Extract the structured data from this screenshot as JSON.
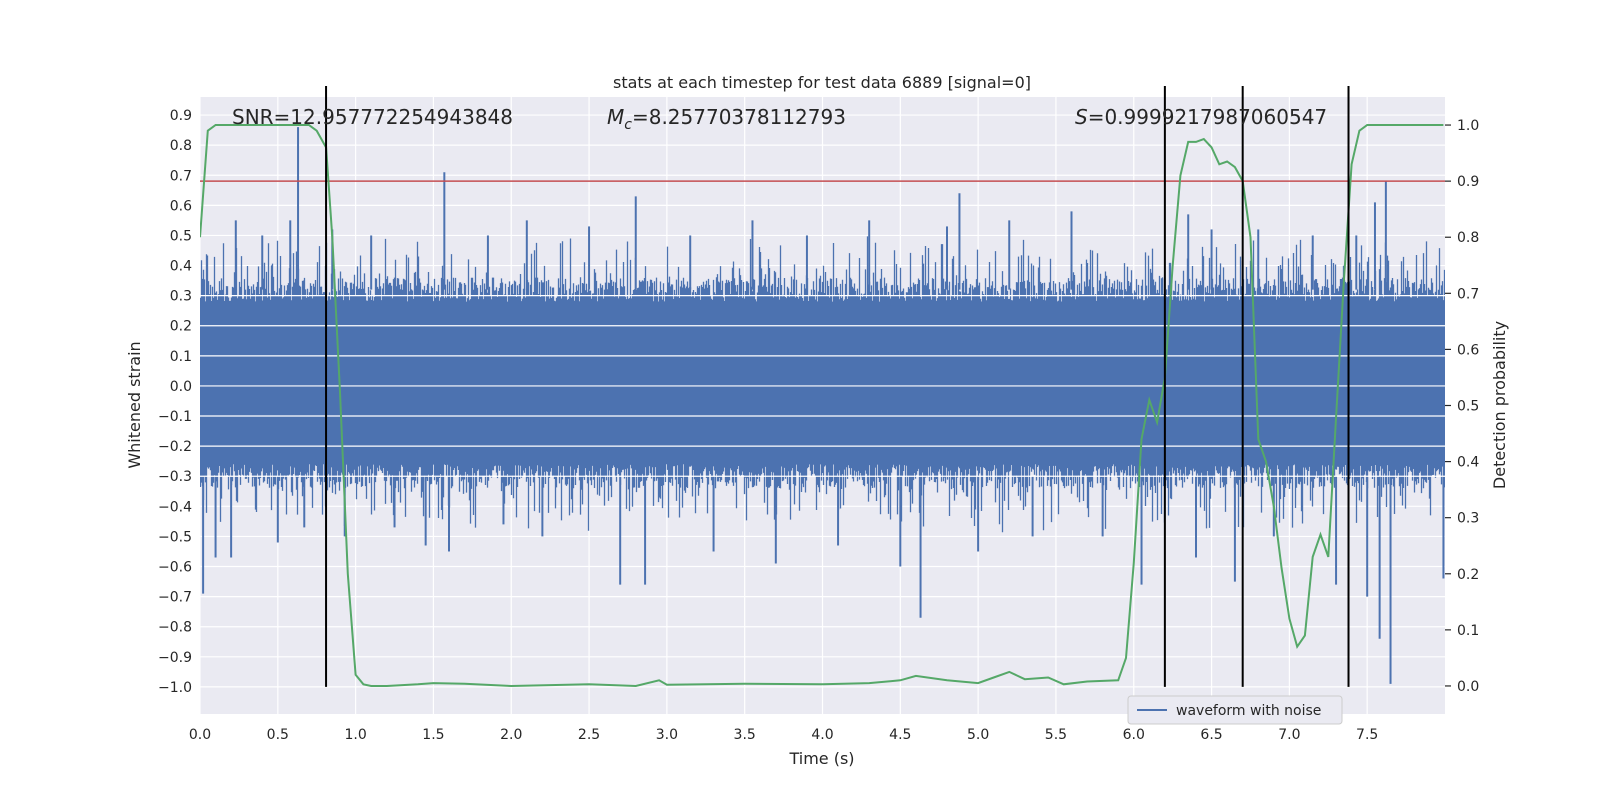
{
  "chart_data": {
    "type": "line",
    "title": "stats at each timestep for test data 6889 [signal=0]",
    "xlabel": "Time (s)",
    "ylabel_left": "Whitened strain",
    "ylabel_right": "Detection probability",
    "xlim": [
      0.0,
      8.0
    ],
    "ylim_left": [
      -1.09,
      0.96
    ],
    "ylim_right": [
      -0.05,
      1.05
    ],
    "x_ticks": [
      0.0,
      0.5,
      1.0,
      1.5,
      2.0,
      2.5,
      3.0,
      3.5,
      4.0,
      4.5,
      5.0,
      5.5,
      6.0,
      6.5,
      7.0,
      7.5
    ],
    "x_tick_labels": [
      "0.0",
      "0.5",
      "1.0",
      "1.5",
      "2.0",
      "2.5",
      "3.0",
      "3.5",
      "4.0",
      "4.5",
      "5.0",
      "5.5",
      "6.0",
      "6.5",
      "7.0",
      "7.5"
    ],
    "y_left_ticks": [
      0.9,
      0.8,
      0.7,
      0.6,
      0.5,
      0.4,
      0.3,
      0.2,
      0.1,
      0.0,
      -0.1,
      -0.2,
      -0.3,
      -0.4,
      -0.5,
      -0.6,
      -0.7,
      -0.8,
      -0.9,
      -1.0
    ],
    "y_left_tick_labels": [
      "0.9",
      "0.8",
      "0.7",
      "0.6",
      "0.5",
      "0.4",
      "0.3",
      "0.2",
      "0.1",
      "0.0",
      "−0.1",
      "−0.2",
      "−0.3",
      "−0.4",
      "−0.5",
      "−0.6",
      "−0.7",
      "−0.8",
      "−0.9",
      "−1.0"
    ],
    "y_right_ticks": [
      1.0,
      0.9,
      0.8,
      0.7,
      0.6,
      0.5,
      0.4,
      0.3,
      0.2,
      0.1,
      0.0
    ],
    "y_right_tick_labels": [
      "1.0",
      "0.9",
      "0.8",
      "0.7",
      "0.6",
      "0.5",
      "0.4",
      "0.3",
      "0.2",
      "0.1",
      "0.0"
    ],
    "annotations": {
      "snr": "SNR=12.957772254943848",
      "mc_symbol": "M",
      "mc_sub": "c",
      "mc_value": "=8.25770378112793",
      "s_symbol": "S",
      "s_value": "=0.9999217987060547"
    },
    "legend": {
      "label": "waveform with noise",
      "location": "lower-right"
    },
    "threshold": {
      "axis": "right",
      "value": 0.9
    },
    "vertical_markers": [
      0.81,
      6.2,
      6.7,
      7.38
    ],
    "vertical_marker_range": [
      -1.0,
      1.0
    ],
    "waveform": {
      "name": "waveform with noise",
      "axis": "left",
      "typical_envelope": [
        -0.3,
        0.32
      ],
      "spikes": [
        {
          "x": 0.02,
          "y": -0.69
        },
        {
          "x": 0.1,
          "y": -0.57
        },
        {
          "x": 0.2,
          "y": -0.57
        },
        {
          "x": 0.23,
          "y": 0.55
        },
        {
          "x": 0.4,
          "y": 0.5
        },
        {
          "x": 0.5,
          "y": -0.52
        },
        {
          "x": 0.58,
          "y": 0.55
        },
        {
          "x": 0.63,
          "y": 0.86
        },
        {
          "x": 0.67,
          "y": -0.47
        },
        {
          "x": 0.85,
          "y": 0.52
        },
        {
          "x": 0.93,
          "y": -0.5
        },
        {
          "x": 1.1,
          "y": 0.5
        },
        {
          "x": 1.25,
          "y": -0.47
        },
        {
          "x": 1.45,
          "y": -0.53
        },
        {
          "x": 1.57,
          "y": 0.71
        },
        {
          "x": 1.6,
          "y": -0.55
        },
        {
          "x": 1.85,
          "y": 0.5
        },
        {
          "x": 1.95,
          "y": -0.46
        },
        {
          "x": 2.1,
          "y": 0.55
        },
        {
          "x": 2.2,
          "y": -0.5
        },
        {
          "x": 2.5,
          "y": 0.53
        },
        {
          "x": 2.7,
          "y": -0.66
        },
        {
          "x": 2.8,
          "y": 0.63
        },
        {
          "x": 2.86,
          "y": -0.66
        },
        {
          "x": 3.15,
          "y": 0.5
        },
        {
          "x": 3.3,
          "y": -0.55
        },
        {
          "x": 3.55,
          "y": 0.55
        },
        {
          "x": 3.7,
          "y": -0.59
        },
        {
          "x": 3.9,
          "y": 0.5
        },
        {
          "x": 4.1,
          "y": -0.53
        },
        {
          "x": 4.3,
          "y": 0.55
        },
        {
          "x": 4.5,
          "y": -0.6
        },
        {
          "x": 4.63,
          "y": -0.77
        },
        {
          "x": 4.8,
          "y": 0.53
        },
        {
          "x": 4.88,
          "y": 0.64
        },
        {
          "x": 5.0,
          "y": -0.55
        },
        {
          "x": 5.2,
          "y": 0.55
        },
        {
          "x": 5.35,
          "y": -0.5
        },
        {
          "x": 5.6,
          "y": 0.58
        },
        {
          "x": 5.8,
          "y": -0.5
        },
        {
          "x": 6.05,
          "y": -0.66
        },
        {
          "x": 6.35,
          "y": 0.57
        },
        {
          "x": 6.4,
          "y": -0.57
        },
        {
          "x": 6.5,
          "y": 0.52
        },
        {
          "x": 6.65,
          "y": -0.65
        },
        {
          "x": 6.8,
          "y": 0.52
        },
        {
          "x": 6.9,
          "y": -0.5
        },
        {
          "x": 7.15,
          "y": 0.5
        },
        {
          "x": 7.3,
          "y": -0.66
        },
        {
          "x": 7.43,
          "y": 0.5
        },
        {
          "x": 7.5,
          "y": -0.7
        },
        {
          "x": 7.55,
          "y": 0.61
        },
        {
          "x": 7.58,
          "y": -0.84
        },
        {
          "x": 7.62,
          "y": 0.68
        },
        {
          "x": 7.65,
          "y": -0.99
        },
        {
          "x": 7.99,
          "y": -0.64
        }
      ]
    },
    "probability": {
      "name": "Detection probability",
      "axis": "right",
      "x": [
        0.0,
        0.05,
        0.1,
        0.3,
        0.5,
        0.6,
        0.7,
        0.75,
        0.81,
        0.85,
        0.9,
        0.95,
        1.0,
        1.05,
        1.1,
        1.2,
        1.4,
        1.5,
        1.7,
        2.0,
        2.5,
        2.8,
        2.95,
        3.0,
        3.5,
        4.0,
        4.3,
        4.5,
        4.6,
        4.8,
        5.0,
        5.1,
        5.2,
        5.3,
        5.45,
        5.55,
        5.7,
        5.9,
        5.95,
        6.0,
        6.05,
        6.1,
        6.15,
        6.2,
        6.25,
        6.3,
        6.35,
        6.4,
        6.45,
        6.5,
        6.55,
        6.6,
        6.65,
        6.7,
        6.75,
        6.8,
        6.85,
        6.9,
        6.95,
        7.0,
        7.05,
        7.1,
        7.15,
        7.2,
        7.25,
        7.3,
        7.35,
        7.4,
        7.45,
        7.5,
        7.55,
        7.6,
        7.7,
        7.99
      ],
      "y": [
        0.8,
        0.99,
        1.0,
        1.0,
        1.0,
        1.0,
        1.0,
        0.99,
        0.96,
        0.8,
        0.52,
        0.2,
        0.02,
        0.003,
        0.0,
        0.0,
        0.003,
        0.005,
        0.004,
        0.0,
        0.003,
        0.0,
        0.01,
        0.002,
        0.004,
        0.003,
        0.005,
        0.01,
        0.018,
        0.01,
        0.005,
        0.015,
        0.025,
        0.012,
        0.015,
        0.003,
        0.008,
        0.01,
        0.05,
        0.22,
        0.44,
        0.51,
        0.47,
        0.55,
        0.75,
        0.91,
        0.97,
        0.97,
        0.975,
        0.96,
        0.93,
        0.935,
        0.925,
        0.9,
        0.8,
        0.44,
        0.4,
        0.32,
        0.21,
        0.12,
        0.07,
        0.09,
        0.23,
        0.27,
        0.23,
        0.48,
        0.72,
        0.93,
        0.99,
        1.0,
        1.0,
        1.0,
        1.0,
        1.0
      ]
    },
    "colors": {
      "background": "#eaeaf2",
      "grid": "#ffffff",
      "waveform": "#4c72b0",
      "probability": "#55a868",
      "threshold": "#c44e52",
      "marker": "#000000"
    }
  }
}
